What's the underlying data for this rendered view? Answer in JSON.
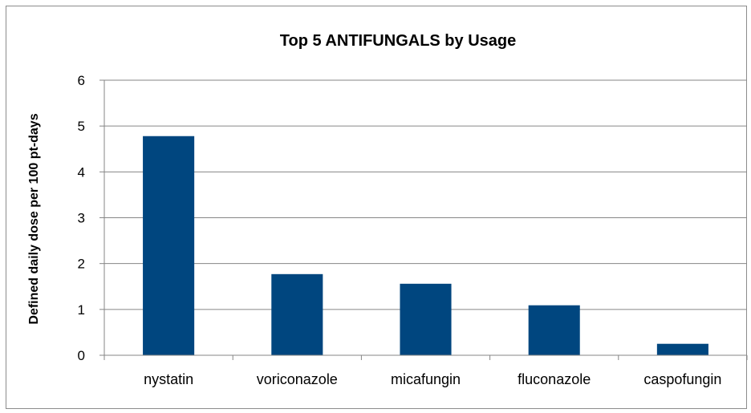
{
  "chart_data": {
    "type": "bar",
    "title": "Top 5 ANTIFUNGALS by Usage",
    "xlabel": "",
    "ylabel": "Defined daily dose per 100 pt-days",
    "categories": [
      "nystatin",
      "voriconazole",
      "micafungin",
      "fluconazole",
      "caspofungin"
    ],
    "values": [
      4.78,
      1.77,
      1.56,
      1.09,
      0.25
    ],
    "ylim": [
      0,
      6
    ],
    "yticks": [
      "0",
      "1",
      "2",
      "3",
      "4",
      "5",
      "6"
    ],
    "grid": true,
    "legend": "none",
    "bar_color": "#00467f",
    "grid_color": "#868686"
  }
}
